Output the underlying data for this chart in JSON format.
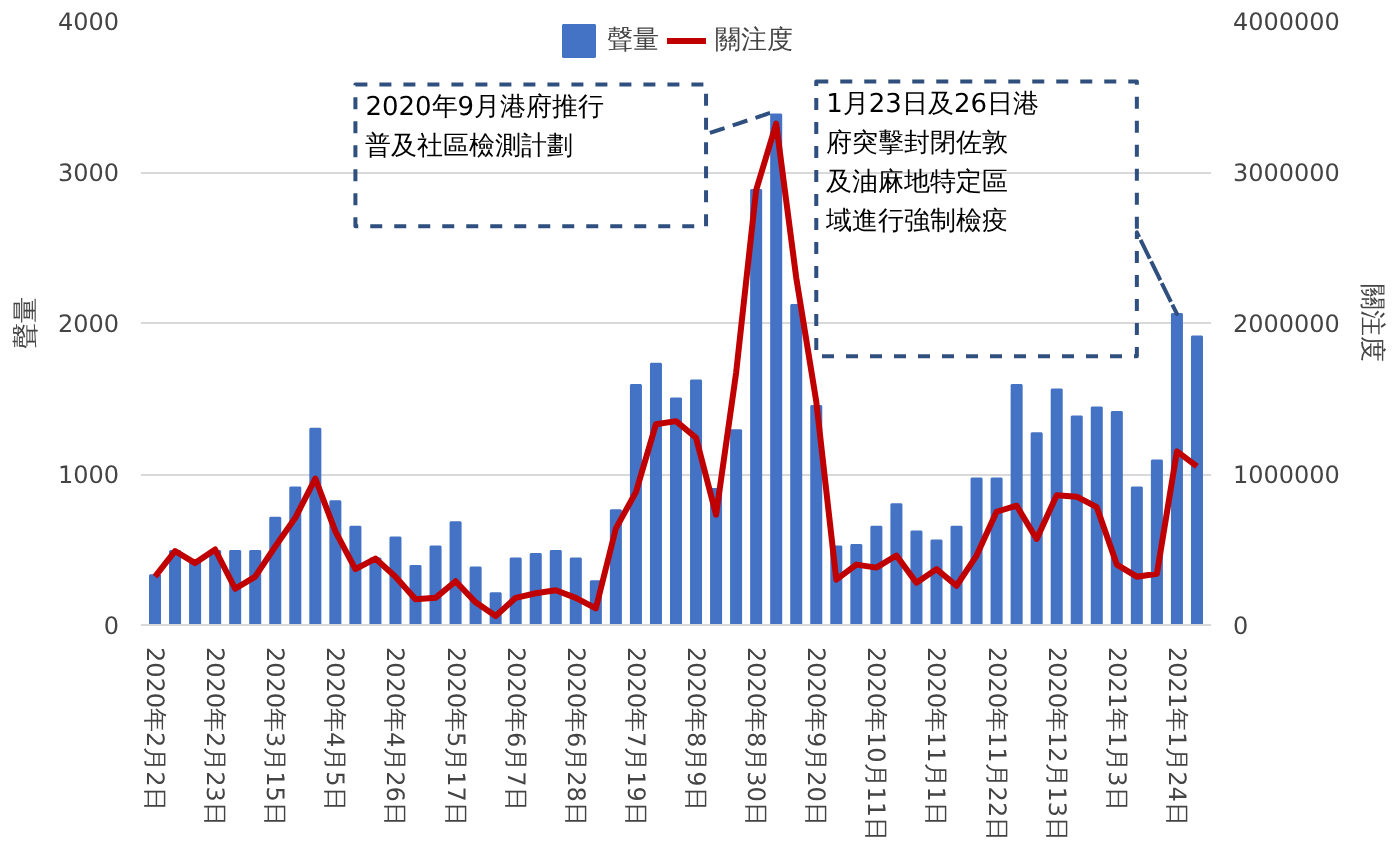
{
  "chart_data": {
    "type": "bar",
    "categories": [
      "2020年2月2日",
      null,
      null,
      "2020年2月23日",
      null,
      null,
      "2020年3月15日",
      null,
      null,
      "2020年4月5日",
      null,
      null,
      "2020年4月26日",
      null,
      null,
      "2020年5月17日",
      null,
      null,
      "2020年6月7日",
      null,
      null,
      "2020年6月28日",
      null,
      null,
      "2020年7月19日",
      null,
      null,
      "2020年8月9日",
      null,
      null,
      "2020年8月30日",
      null,
      null,
      "2020年9月20日",
      null,
      null,
      "2020年10月11日",
      null,
      null,
      "2020年11月1日",
      null,
      null,
      "2020年11月22日",
      null,
      null,
      "2020年12月13日",
      null,
      null,
      "2021年1月3日",
      null,
      null,
      "2021年1月24日",
      null
    ],
    "series": [
      {
        "name": "聲量",
        "color": "#4472c4",
        "values": [
          330,
          490,
          420,
          490,
          490,
          490,
          710,
          910,
          1300,
          820,
          650,
          440,
          580,
          390,
          520,
          680,
          380,
          210,
          440,
          470,
          490,
          440,
          290,
          760,
          1590,
          1730,
          1500,
          1620,
          900,
          1290,
          2880,
          3380,
          2120,
          1450,
          520,
          530,
          650,
          800,
          620,
          560,
          650,
          970,
          970,
          1590,
          1270,
          1560,
          1380,
          1440,
          1410,
          910,
          1090,
          2060,
          1910
        ]
      },
      {
        "name": "關注度",
        "type": "line",
        "axis": "y2",
        "color": "#c00000",
        "values": [
          320000,
          490000,
          410000,
          500000,
          240000,
          320000,
          520000,
          710000,
          970000,
          620000,
          370000,
          440000,
          320000,
          170000,
          180000,
          290000,
          150000,
          60000,
          180000,
          210000,
          230000,
          180000,
          110000,
          640000,
          880000,
          1330000,
          1350000,
          1240000,
          730000,
          1670000,
          2880000,
          3320000,
          2300000,
          1480000,
          300000,
          400000,
          380000,
          460000,
          280000,
          370000,
          260000,
          460000,
          750000,
          790000,
          570000,
          860000,
          850000,
          780000,
          400000,
          320000,
          340000,
          1150000,
          1050000
        ]
      }
    ],
    "ylabel": "聲量",
    "y2label": "關注度",
    "ylim": [
      0,
      4000
    ],
    "yticks": [
      0,
      1000,
      2000,
      3000,
      4000
    ],
    "y2lim": [
      0,
      4000000
    ],
    "y2ticks": [
      0,
      1000000,
      2000000,
      3000000,
      4000000
    ],
    "grid": "y",
    "legend": "top",
    "marker": "none",
    "line_style": "solid",
    "annotations": [
      "2020年9月港府推行普及社區檢測計劃",
      "1月23日及26日港府突擊封閉佐敦及油麻地特定區域進行強制檢疫"
    ]
  }
}
